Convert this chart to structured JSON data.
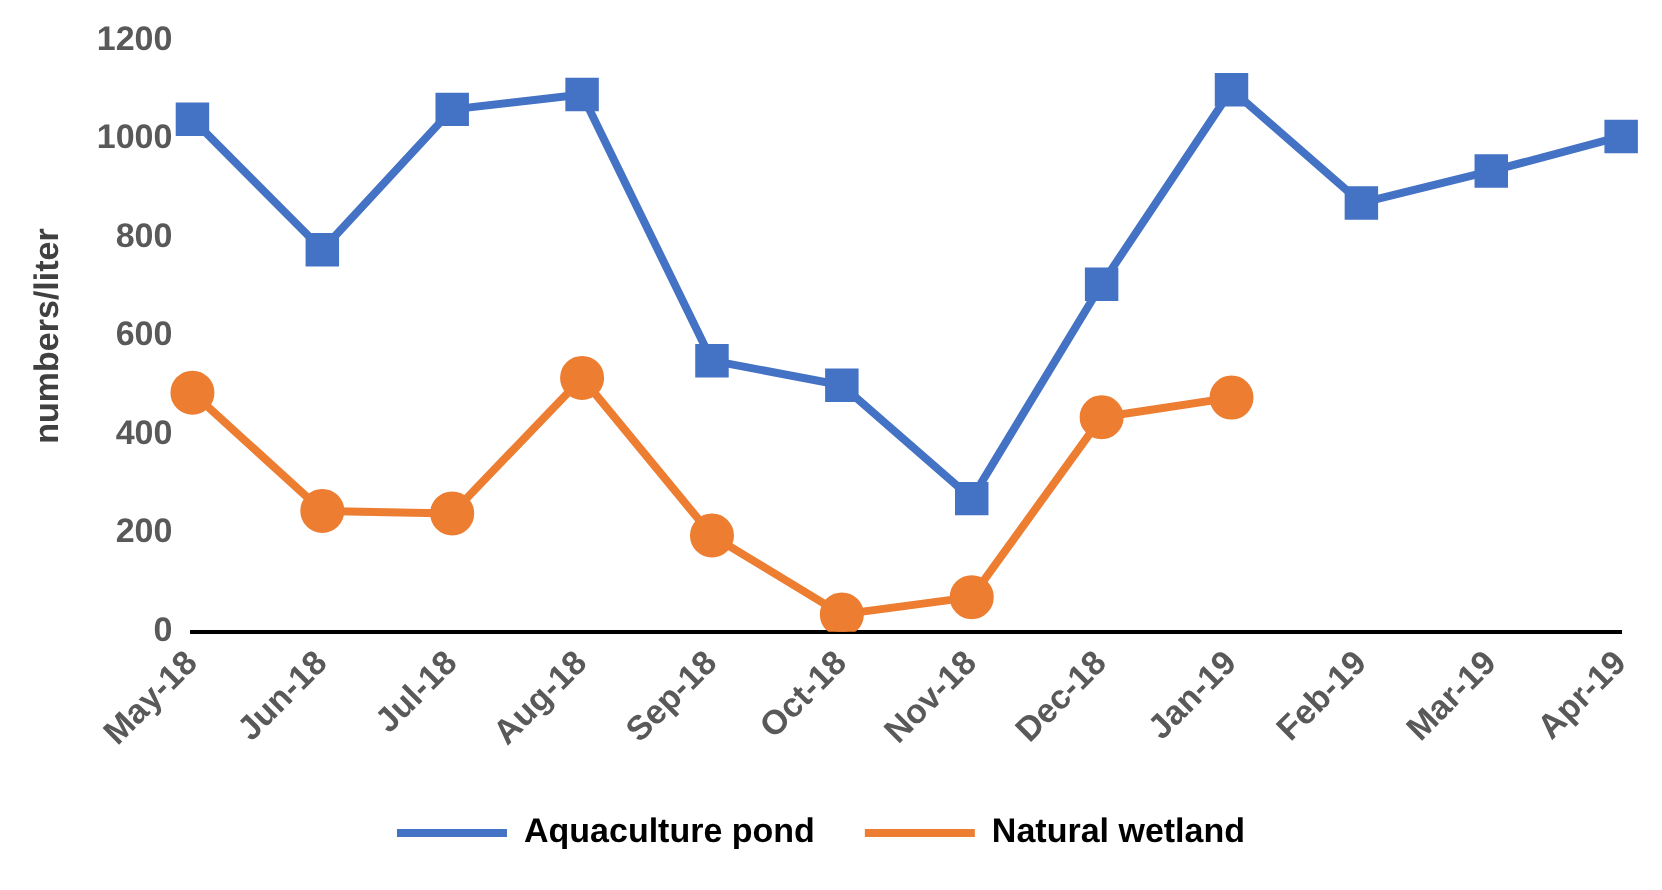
{
  "chart_data": {
    "type": "line",
    "ylabel": "numbers/liter",
    "categories": [
      "May-18",
      "Jun-18",
      "Jul-18",
      "Aug-18",
      "Sep-18",
      "Oct-18",
      "Nov-18",
      "Dec-18",
      "Jan-19",
      "Feb-19",
      "Mar-19",
      "Apr-19"
    ],
    "series": [
      {
        "name": "Aquaculture pond",
        "color": "#4472c4",
        "marker": "square",
        "values": [
          1040,
          775,
          1060,
          1090,
          550,
          500,
          270,
          705,
          1100,
          870,
          935,
          1005
        ]
      },
      {
        "name": "Natural wetland",
        "color": "#ed7d31",
        "marker": "circle",
        "values": [
          485,
          245,
          240,
          515,
          195,
          35,
          70,
          435,
          475,
          null,
          null,
          null
        ]
      }
    ],
    "ylim": [
      0,
      1200
    ],
    "yticks": [
      0,
      200,
      400,
      600,
      800,
      1000,
      1200
    ],
    "grid": false,
    "legend": "bottom",
    "line_style": "solid"
  }
}
